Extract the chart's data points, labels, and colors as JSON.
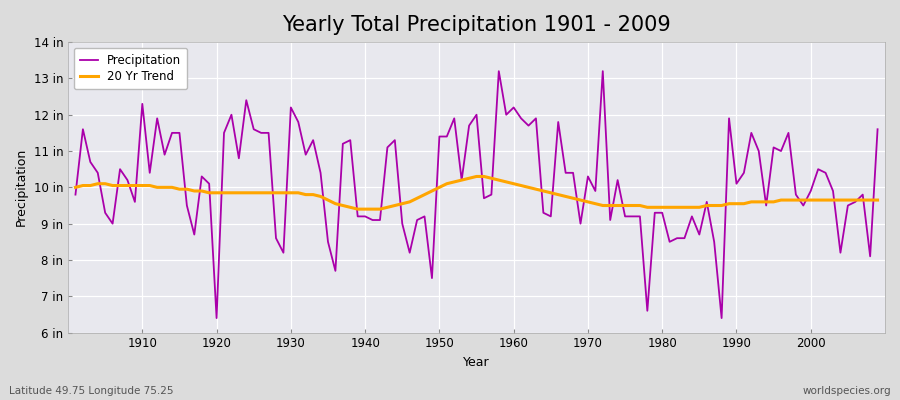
{
  "title": "Yearly Total Precipitation 1901 - 2009",
  "xlabel": "Year",
  "ylabel": "Precipitation",
  "subtitle_left": "Latitude 49.75 Longitude 75.25",
  "subtitle_right": "worldspecies.org",
  "years": [
    1901,
    1902,
    1903,
    1904,
    1905,
    1906,
    1907,
    1908,
    1909,
    1910,
    1911,
    1912,
    1913,
    1914,
    1915,
    1916,
    1917,
    1918,
    1919,
    1920,
    1921,
    1922,
    1923,
    1924,
    1925,
    1926,
    1927,
    1928,
    1929,
    1930,
    1931,
    1932,
    1933,
    1934,
    1935,
    1936,
    1937,
    1938,
    1939,
    1940,
    1941,
    1942,
    1943,
    1944,
    1945,
    1946,
    1947,
    1948,
    1949,
    1950,
    1951,
    1952,
    1953,
    1954,
    1955,
    1956,
    1957,
    1958,
    1959,
    1960,
    1961,
    1962,
    1963,
    1964,
    1965,
    1966,
    1967,
    1968,
    1969,
    1970,
    1971,
    1972,
    1973,
    1974,
    1975,
    1976,
    1977,
    1978,
    1979,
    1980,
    1981,
    1982,
    1983,
    1984,
    1985,
    1986,
    1987,
    1988,
    1989,
    1990,
    1991,
    1992,
    1993,
    1994,
    1995,
    1996,
    1997,
    1998,
    1999,
    2000,
    2001,
    2002,
    2003,
    2004,
    2005,
    2006,
    2007,
    2008,
    2009
  ],
  "precip": [
    9.8,
    11.6,
    10.7,
    10.4,
    9.3,
    9.0,
    10.5,
    10.2,
    9.6,
    12.3,
    10.4,
    11.9,
    10.9,
    11.5,
    11.5,
    9.5,
    8.7,
    10.3,
    10.1,
    6.4,
    11.5,
    12.0,
    10.8,
    12.4,
    11.6,
    11.5,
    11.5,
    8.6,
    8.2,
    12.2,
    11.8,
    10.9,
    11.3,
    10.4,
    8.5,
    7.7,
    11.2,
    11.3,
    9.2,
    9.2,
    9.1,
    9.1,
    11.1,
    11.3,
    9.0,
    8.2,
    9.1,
    9.2,
    7.5,
    11.4,
    11.4,
    11.9,
    10.2,
    11.7,
    12.0,
    9.7,
    9.8,
    13.2,
    12.0,
    12.2,
    11.9,
    11.7,
    11.9,
    9.3,
    9.2,
    11.8,
    10.4,
    10.4,
    9.0,
    10.3,
    9.9,
    13.2,
    9.1,
    10.2,
    9.2,
    9.2,
    9.2,
    6.6,
    9.3,
    9.3,
    8.5,
    8.6,
    8.6,
    9.2,
    8.7,
    9.6,
    8.5,
    6.4,
    11.9,
    10.1,
    10.4,
    11.5,
    11.0,
    9.5,
    11.1,
    11.0,
    11.5,
    9.8,
    9.5,
    9.9,
    10.5,
    10.4,
    9.9,
    8.2,
    9.5,
    9.6,
    9.8,
    8.1,
    11.6
  ],
  "trend": [
    10.0,
    10.05,
    10.05,
    10.1,
    10.1,
    10.05,
    10.05,
    10.05,
    10.05,
    10.05,
    10.05,
    10.0,
    10.0,
    10.0,
    9.95,
    9.95,
    9.9,
    9.9,
    9.85,
    9.85,
    9.85,
    9.85,
    9.85,
    9.85,
    9.85,
    9.85,
    9.85,
    9.85,
    9.85,
    9.85,
    9.85,
    9.8,
    9.8,
    9.75,
    9.65,
    9.55,
    9.5,
    9.45,
    9.4,
    9.4,
    9.4,
    9.4,
    9.45,
    9.5,
    9.55,
    9.6,
    9.7,
    9.8,
    9.9,
    10.0,
    10.1,
    10.15,
    10.2,
    10.25,
    10.3,
    10.3,
    10.25,
    10.2,
    10.15,
    10.1,
    10.05,
    10.0,
    9.95,
    9.9,
    9.85,
    9.8,
    9.75,
    9.7,
    9.65,
    9.6,
    9.55,
    9.5,
    9.5,
    9.5,
    9.5,
    9.5,
    9.5,
    9.45,
    9.45,
    9.45,
    9.45,
    9.45,
    9.45,
    9.45,
    9.45,
    9.5,
    9.5,
    9.5,
    9.55,
    9.55,
    9.55,
    9.6,
    9.6,
    9.6,
    9.6,
    9.65,
    9.65,
    9.65,
    9.65,
    9.65,
    9.65,
    9.65,
    9.65,
    9.65,
    9.65,
    9.65,
    9.65,
    9.65,
    9.65
  ],
  "precip_color": "#aa00aa",
  "trend_color": "#FFA500",
  "fig_bg_color": "#dcdcdc",
  "plot_bg_color": "#e8e8ee",
  "grid_color": "#ffffff",
  "ylim": [
    6.0,
    14.0
  ],
  "yticks": [
    6,
    7,
    8,
    9,
    10,
    11,
    12,
    13,
    14
  ],
  "xticks": [
    1910,
    1920,
    1930,
    1940,
    1950,
    1960,
    1970,
    1980,
    1990,
    2000
  ],
  "title_fontsize": 15,
  "axis_label_fontsize": 9,
  "tick_fontsize": 8.5,
  "linewidth_precip": 1.3,
  "linewidth_trend": 2.2
}
